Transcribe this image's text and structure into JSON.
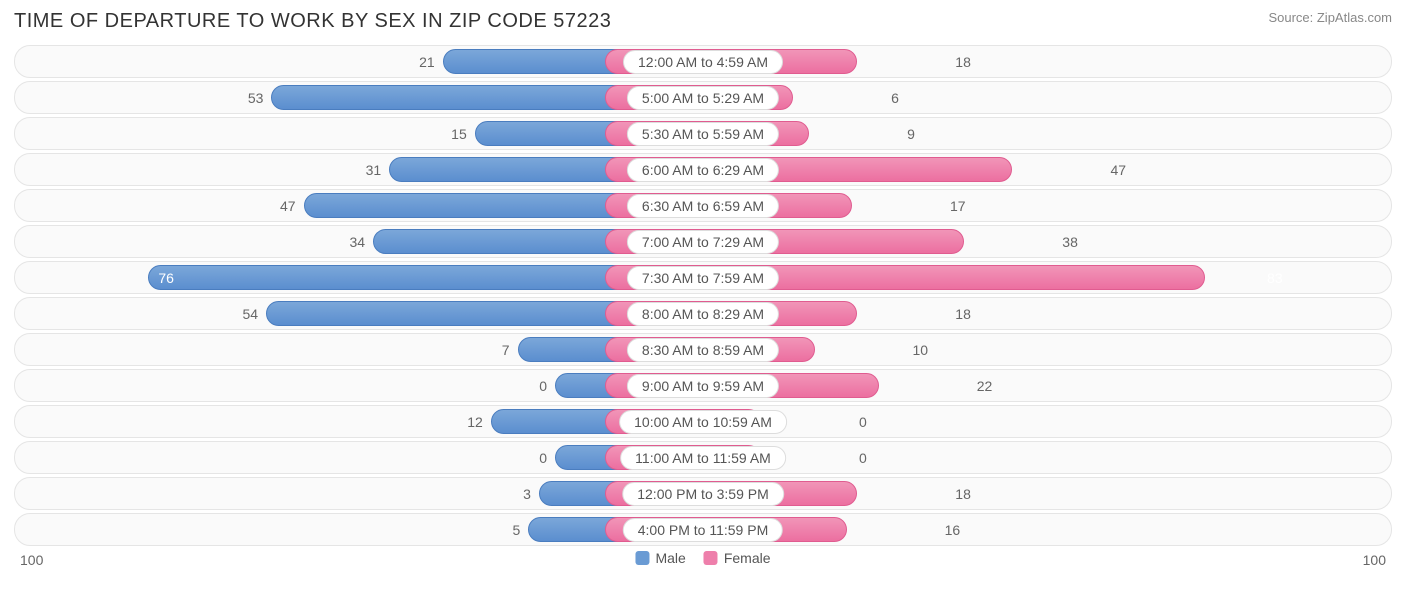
{
  "header": {
    "title": "TIME OF DEPARTURE TO WORK BY SEX IN ZIP CODE 57223",
    "source": "Source: ZipAtlas.com"
  },
  "chart": {
    "type": "diverging-bar",
    "axis_max": 100,
    "axis_label_left": "100",
    "axis_label_right": "100",
    "center_label_min_width": 180,
    "min_bar_width": 58,
    "colors": {
      "male_fill": "#6a9bd4",
      "male_border": "#4a7dbf",
      "female_fill": "#ee7fab",
      "female_border": "#e05c90",
      "row_bg": "#fafafa",
      "row_border": "#e5e5e5",
      "label_bg": "#ffffff",
      "label_border": "#dddddd",
      "text": "#555555",
      "value_text": "#666666",
      "title_text": "#333333",
      "source_text": "#888888"
    },
    "legend": [
      {
        "label": "Male",
        "color": "#6a9bd4"
      },
      {
        "label": "Female",
        "color": "#ee7fab"
      }
    ],
    "rows": [
      {
        "label": "12:00 AM to 4:59 AM",
        "male": 21,
        "female": 18
      },
      {
        "label": "5:00 AM to 5:29 AM",
        "male": 53,
        "female": 6
      },
      {
        "label": "5:30 AM to 5:59 AM",
        "male": 15,
        "female": 9
      },
      {
        "label": "6:00 AM to 6:29 AM",
        "male": 31,
        "female": 47
      },
      {
        "label": "6:30 AM to 6:59 AM",
        "male": 47,
        "female": 17
      },
      {
        "label": "7:00 AM to 7:29 AM",
        "male": 34,
        "female": 38
      },
      {
        "label": "7:30 AM to 7:59 AM",
        "male": 76,
        "female": 83
      },
      {
        "label": "8:00 AM to 8:29 AM",
        "male": 54,
        "female": 18
      },
      {
        "label": "8:30 AM to 8:59 AM",
        "male": 7,
        "female": 10
      },
      {
        "label": "9:00 AM to 9:59 AM",
        "male": 0,
        "female": 22
      },
      {
        "label": "10:00 AM to 10:59 AM",
        "male": 12,
        "female": 0
      },
      {
        "label": "11:00 AM to 11:59 AM",
        "male": 0,
        "female": 0
      },
      {
        "label": "12:00 PM to 3:59 PM",
        "male": 3,
        "female": 18
      },
      {
        "label": "4:00 PM to 11:59 PM",
        "male": 5,
        "female": 16
      }
    ]
  }
}
